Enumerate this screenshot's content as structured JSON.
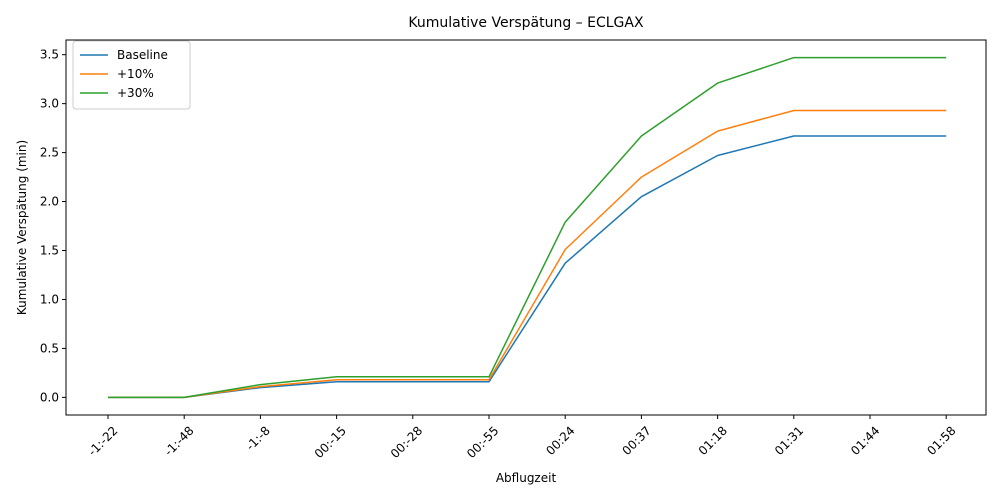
{
  "chart_data": {
    "type": "line",
    "title": "Kumulative Verspätung – ECLGAX",
    "xlabel": "Abflugzeit",
    "ylabel": "Kumulative Verspätung (min)",
    "categories": [
      "-1:-22",
      "-1:-48",
      "-1:-8",
      "00:-15",
      "00:-28",
      "00:-55",
      "00:24",
      "00:37",
      "01:18",
      "01:31",
      "01:44",
      "01:58"
    ],
    "ylim": [
      -0.18,
      3.65
    ],
    "yticks": [
      "0.0",
      "0.5",
      "1.0",
      "1.5",
      "2.0",
      "2.5",
      "3.0",
      "3.5"
    ],
    "grid": false,
    "legend_position": "top-left",
    "series": [
      {
        "name": "Baseline",
        "color": "#1f77b4",
        "values": [
          0.0,
          0.0,
          0.1,
          0.16,
          0.16,
          0.16,
          1.37,
          2.05,
          2.47,
          2.67,
          2.67,
          2.67
        ]
      },
      {
        "name": "+10%",
        "color": "#ff7f0e",
        "values": [
          0.0,
          0.0,
          0.11,
          0.18,
          0.18,
          0.18,
          1.51,
          2.25,
          2.72,
          2.93,
          2.93,
          2.93
        ]
      },
      {
        "name": "+30%",
        "color": "#2ca02c",
        "values": [
          0.0,
          0.0,
          0.13,
          0.21,
          0.21,
          0.21,
          1.79,
          2.67,
          3.21,
          3.47,
          3.47,
          3.47
        ]
      }
    ]
  }
}
